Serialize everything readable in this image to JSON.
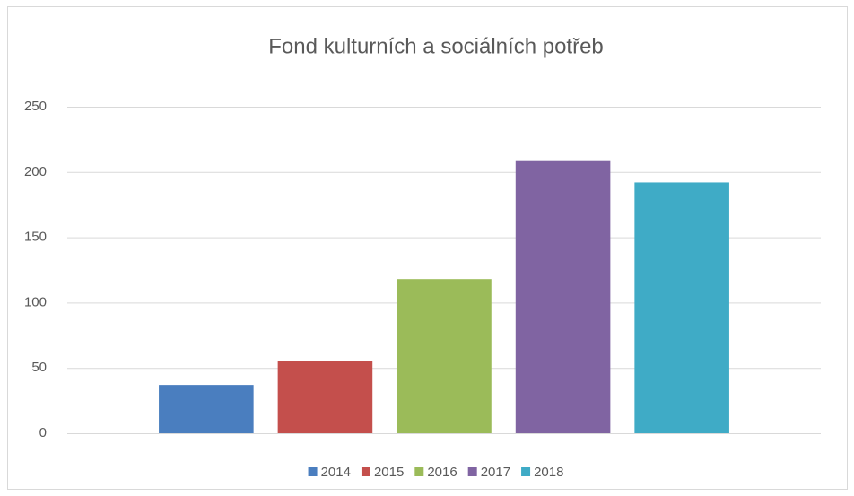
{
  "chart_data": {
    "type": "bar",
    "title": "Fond kulturních a sociálních potřeb",
    "categories": [
      null
    ],
    "series": [
      {
        "name": "2014",
        "color": "#4a7ebf",
        "values": [
          37
        ]
      },
      {
        "name": "2015",
        "color": "#c44f4c",
        "values": [
          55
        ]
      },
      {
        "name": "2016",
        "color": "#9bbb59",
        "values": [
          118
        ]
      },
      {
        "name": "2017",
        "color": "#8064a2",
        "values": [
          209
        ]
      },
      {
        "name": "2018",
        "color": "#3fabc6",
        "values": [
          192
        ]
      }
    ],
    "ylim": [
      0,
      250
    ],
    "yticks": [
      0,
      50,
      100,
      150,
      200,
      250
    ],
    "grid": true,
    "legend": "bottom"
  }
}
